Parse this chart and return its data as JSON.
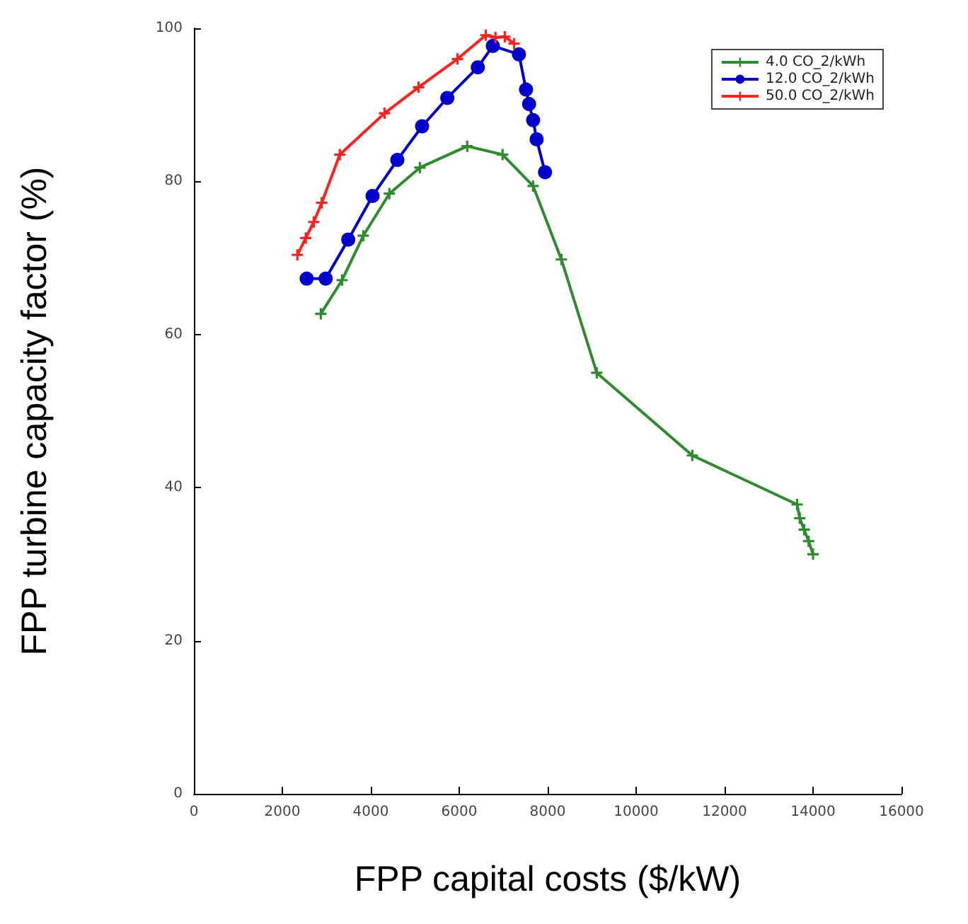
{
  "chart_data": {
    "type": "line",
    "xlabel": "FPP capital costs ($/kW)",
    "ylabel": "FPP turbine capacity factor (%)",
    "xlim": [
      0,
      16000
    ],
    "xticks": [
      0,
      2000,
      4000,
      6000,
      8000,
      10000,
      12000,
      14000,
      16000
    ],
    "ylim": [
      0,
      100
    ],
    "yticks": [
      0,
      20,
      40,
      60,
      80,
      100
    ],
    "grid": false,
    "legend": "top right",
    "series": [
      {
        "name": "4.0 CO_2/kWh",
        "color": "#2e8b2e",
        "marker": "cross",
        "x": [
          2870,
          3350,
          3830,
          4420,
          5110,
          6180,
          6980,
          7670,
          8310,
          9110,
          11270,
          13640,
          13700,
          13800,
          13900,
          14000
        ],
        "values": [
          62.7,
          67.1,
          72.9,
          78.4,
          81.8,
          84.6,
          83.5,
          79.4,
          69.8,
          55.0,
          44.2,
          37.8,
          36.0,
          34.5,
          33.0,
          31.3
        ]
      },
      {
        "name": "12.0 CO_2/kWh",
        "color": "#0000cc",
        "marker": "circle",
        "x": [
          2550,
          2980,
          3490,
          4040,
          4600,
          5160,
          5730,
          6420,
          6760,
          7350,
          7510,
          7580,
          7670,
          7750,
          7940
        ],
        "values": [
          67.3,
          67.3,
          72.4,
          78.1,
          82.8,
          87.2,
          90.9,
          94.9,
          97.7,
          96.6,
          92.0,
          90.1,
          88.0,
          85.5,
          81.2
        ]
      },
      {
        "name": "50.0 CO_2/kWh",
        "color": "#ff2020",
        "marker": "cross",
        "x": [
          2340,
          2530,
          2710,
          2890,
          3300,
          4310,
          5080,
          5960,
          6600,
          6820,
          7030,
          7240
        ],
        "values": [
          70.4,
          72.6,
          74.7,
          77.2,
          83.5,
          88.9,
          92.3,
          96.0,
          99.1,
          98.8,
          98.9,
          98.0
        ]
      }
    ]
  }
}
